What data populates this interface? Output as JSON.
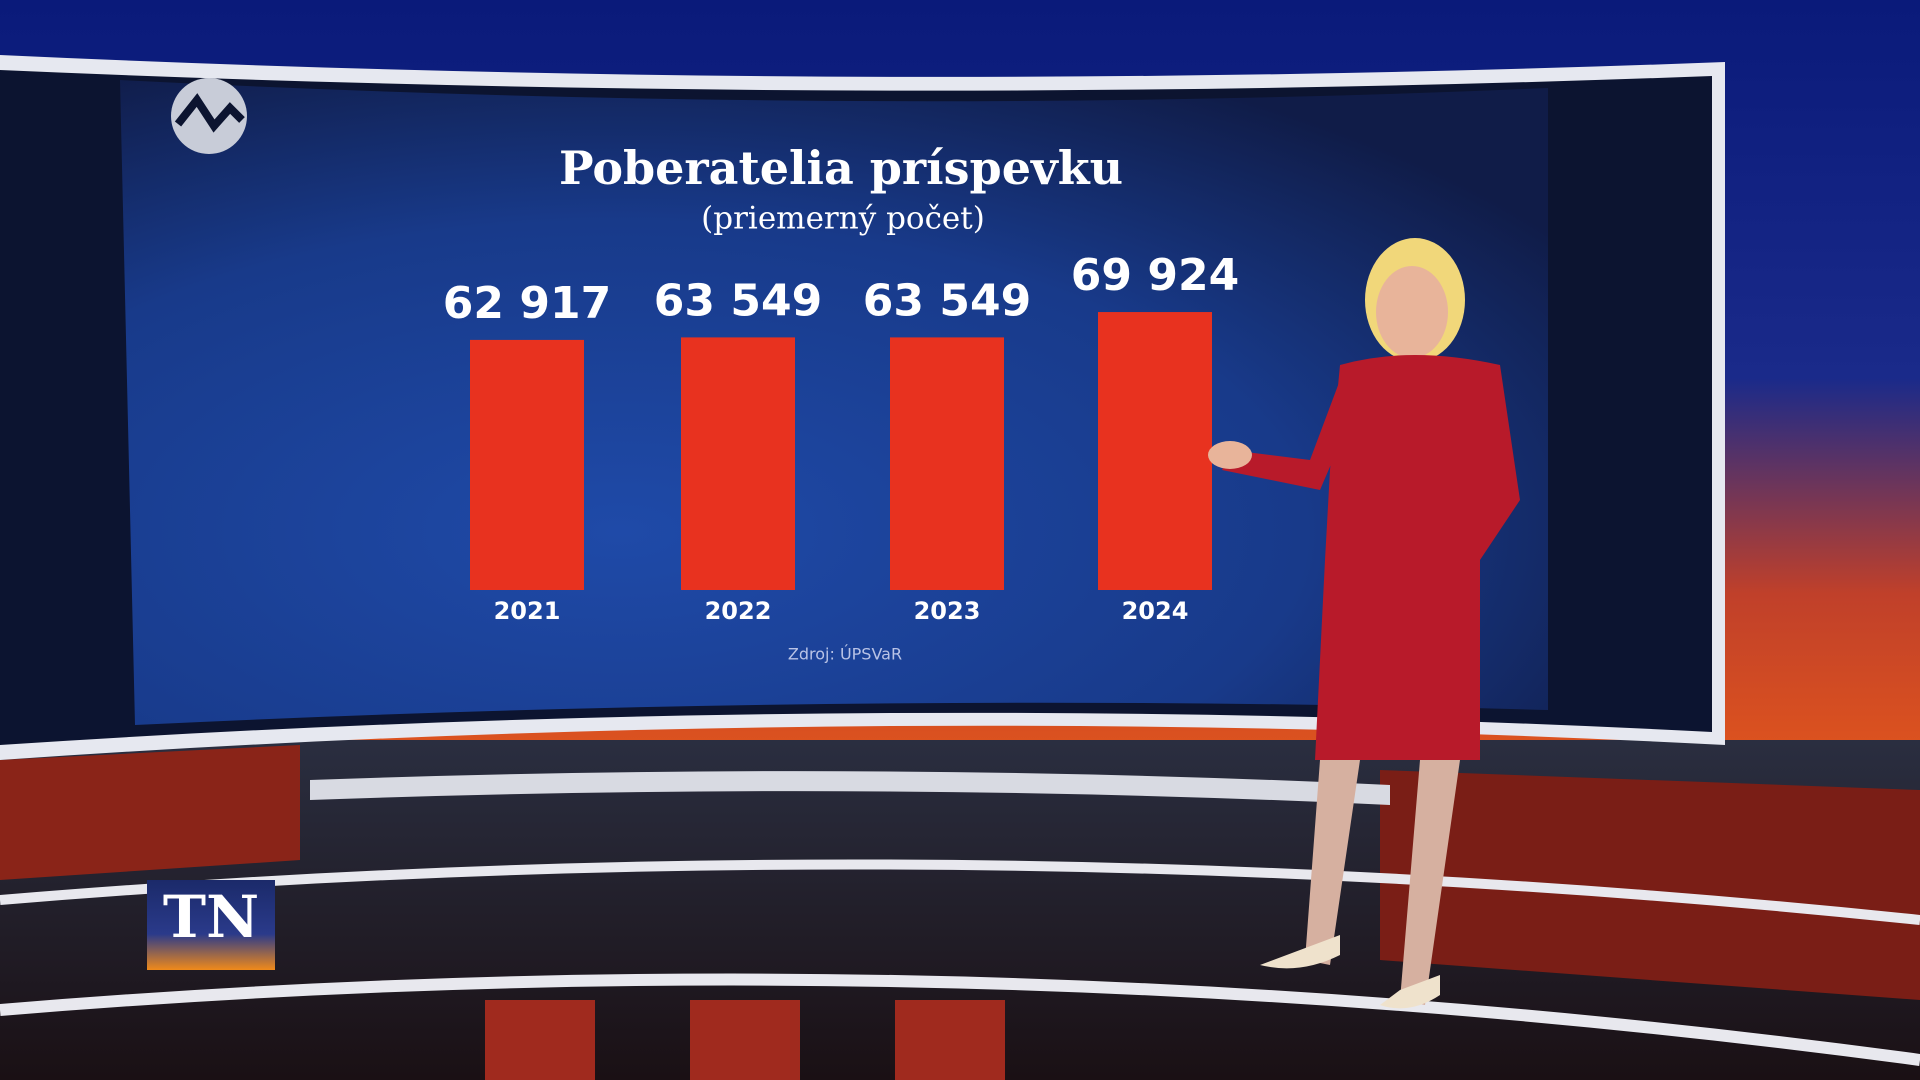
{
  "logo": "TN",
  "chart_data": {
    "type": "bar",
    "title": "Poberatelia príspevku",
    "subtitle": "(priemerný počet)",
    "source": "Zdroj: ÚPSVaR",
    "categories": [
      "2021",
      "2022",
      "2023",
      "2024"
    ],
    "values": [
      62917,
      63549,
      63549,
      69924
    ],
    "value_labels": [
      "62 917",
      "63 549",
      "63 549",
      "69 924"
    ],
    "color": "#e8321f",
    "ylim": [
      0,
      80000
    ]
  }
}
